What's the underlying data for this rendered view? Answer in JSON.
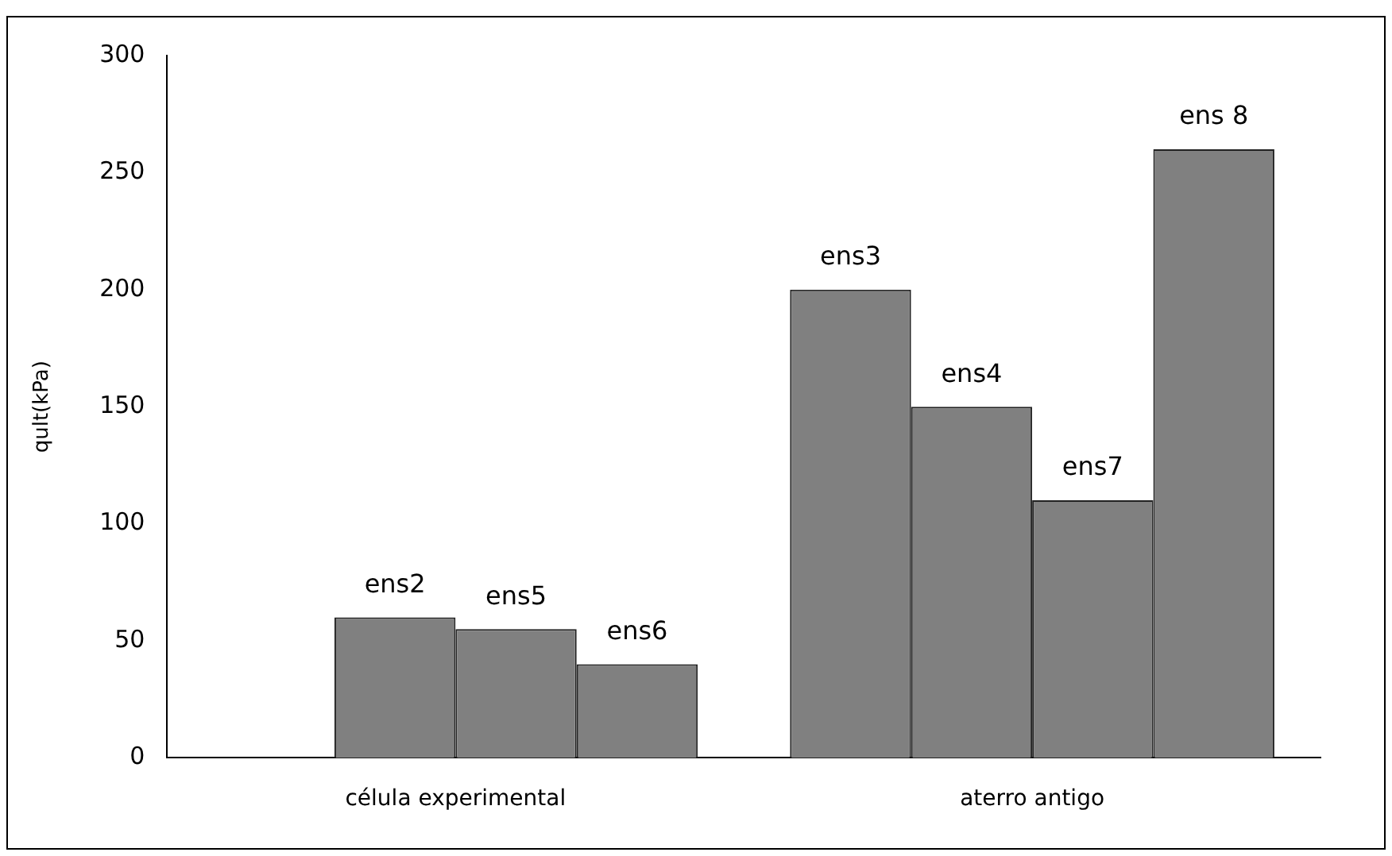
{
  "chart_data": {
    "type": "bar",
    "ylabel": "qult(kPa)",
    "categories": [
      "célula experimental",
      "aterro antigo"
    ],
    "series": [
      {
        "color": "#808080",
        "values": [
          null,
          200
        ],
        "value_labels": [
          null,
          "ens3"
        ]
      },
      {
        "color": "#808080",
        "values": [
          60,
          150
        ],
        "value_labels": [
          "ens2",
          "ens4"
        ]
      },
      {
        "color": "#808080",
        "values": [
          55,
          110
        ],
        "value_labels": [
          "ens5",
          "ens7"
        ]
      },
      {
        "color": "#808080",
        "values": [
          40,
          260
        ],
        "value_labels": [
          "ens6",
          "ens 8"
        ]
      }
    ],
    "ylim": [
      0,
      300
    ],
    "yticks": [
      0,
      50,
      100,
      150,
      200,
      250,
      300
    ],
    "grid": false,
    "legend": false
  }
}
